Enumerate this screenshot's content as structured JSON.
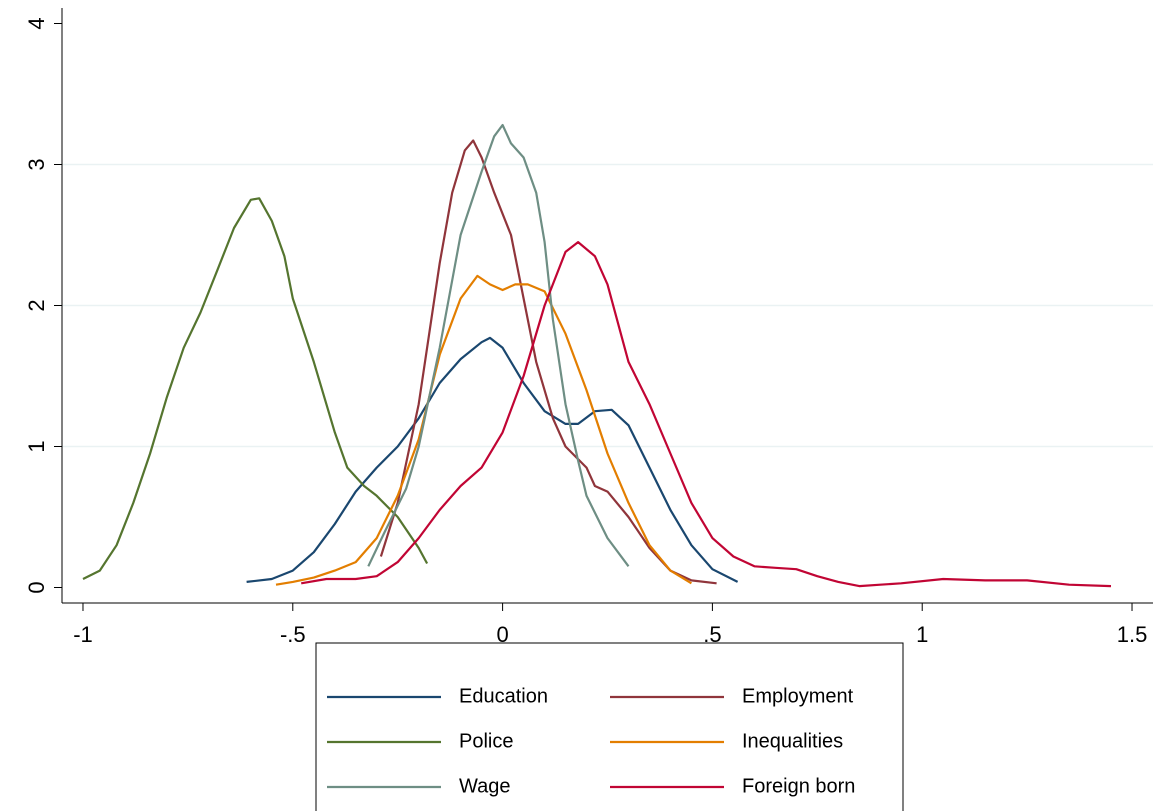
{
  "chart_data": {
    "type": "line",
    "xlim": [
      -1.05,
      1.55
    ],
    "ylim": [
      -0.11,
      4.11
    ],
    "xticks": [
      -1,
      {
        "value": -0.5,
        "label": "-.5"
      },
      0,
      {
        "value": 0.5,
        "label": ".5"
      },
      1,
      1.5
    ],
    "yticks": [
      0,
      1,
      2,
      3,
      4
    ],
    "grid": true,
    "legend": "bottom",
    "series": [
      {
        "name": "Education",
        "color": "#1a476f",
        "x": [
          -0.61,
          -0.55,
          -0.5,
          -0.45,
          -0.4,
          -0.35,
          -0.3,
          -0.25,
          -0.2,
          -0.15,
          -0.1,
          -0.05,
          -0.03,
          0,
          0.05,
          0.1,
          0.15,
          0.18,
          0.22,
          0.26,
          0.3,
          0.35,
          0.4,
          0.45,
          0.5,
          0.56
        ],
        "values": [
          0.04,
          0.06,
          0.12,
          0.25,
          0.45,
          0.68,
          0.85,
          1.0,
          1.2,
          1.45,
          1.62,
          1.74,
          1.77,
          1.7,
          1.45,
          1.25,
          1.16,
          1.16,
          1.25,
          1.26,
          1.15,
          0.85,
          0.55,
          0.3,
          0.13,
          0.04
        ]
      },
      {
        "name": "Employment",
        "color": "#90353b",
        "x": [
          -0.29,
          -0.25,
          -0.2,
          -0.15,
          -0.12,
          -0.09,
          -0.07,
          -0.05,
          -0.02,
          0.02,
          0.05,
          0.08,
          0.12,
          0.15,
          0.2,
          0.22,
          0.25,
          0.3,
          0.35,
          0.4,
          0.45,
          0.51
        ],
        "values": [
          0.22,
          0.6,
          1.3,
          2.3,
          2.8,
          3.1,
          3.17,
          3.05,
          2.8,
          2.5,
          2.05,
          1.6,
          1.2,
          1.0,
          0.85,
          0.72,
          0.68,
          0.5,
          0.28,
          0.12,
          0.05,
          0.03
        ]
      },
      {
        "name": "Police",
        "color": "#55752f",
        "x": [
          -1,
          -0.96,
          -0.92,
          -0.88,
          -0.84,
          -0.8,
          -0.76,
          -0.72,
          -0.68,
          -0.64,
          -0.6,
          -0.58,
          -0.55,
          -0.52,
          -0.5,
          -0.45,
          -0.4,
          -0.37,
          -0.33,
          -0.3,
          -0.25,
          -0.2,
          -0.18
        ],
        "values": [
          0.06,
          0.12,
          0.3,
          0.6,
          0.95,
          1.35,
          1.7,
          1.95,
          2.25,
          2.55,
          2.75,
          2.76,
          2.6,
          2.35,
          2.05,
          1.6,
          1.1,
          0.85,
          0.72,
          0.65,
          0.5,
          0.28,
          0.17
        ]
      },
      {
        "name": "Inequalities",
        "color": "#e37e00",
        "x": [
          -0.54,
          -0.5,
          -0.45,
          -0.4,
          -0.35,
          -0.3,
          -0.25,
          -0.2,
          -0.15,
          -0.1,
          -0.06,
          -0.03,
          0,
          0.03,
          0.06,
          0.1,
          0.15,
          0.2,
          0.25,
          0.3,
          0.35,
          0.4,
          0.45
        ],
        "values": [
          0.02,
          0.04,
          0.07,
          0.12,
          0.18,
          0.35,
          0.65,
          1.05,
          1.65,
          2.05,
          2.21,
          2.15,
          2.11,
          2.15,
          2.15,
          2.1,
          1.8,
          1.4,
          0.95,
          0.6,
          0.3,
          0.12,
          0.03
        ]
      },
      {
        "name": "Wage",
        "color": "#6e8e84",
        "x": [
          -0.32,
          -0.28,
          -0.23,
          -0.2,
          -0.15,
          -0.1,
          -0.05,
          -0.02,
          0,
          0.02,
          0.05,
          0.08,
          0.1,
          0.12,
          0.15,
          0.18,
          0.2,
          0.25,
          0.3
        ],
        "values": [
          0.15,
          0.4,
          0.7,
          1.0,
          1.7,
          2.5,
          2.95,
          3.2,
          3.28,
          3.15,
          3.05,
          2.8,
          2.45,
          1.9,
          1.3,
          0.9,
          0.65,
          0.35,
          0.15
        ]
      },
      {
        "name": "Foreign born",
        "color": "#c10534",
        "x": [
          -0.48,
          -0.42,
          -0.35,
          -0.3,
          -0.25,
          -0.2,
          -0.15,
          -0.1,
          -0.05,
          0,
          0.05,
          0.1,
          0.15,
          0.18,
          0.22,
          0.25,
          0.3,
          0.35,
          0.4,
          0.45,
          0.5,
          0.55,
          0.6,
          0.65,
          0.7,
          0.75,
          0.8,
          0.85,
          0.9,
          0.95,
          1.05,
          1.15,
          1.25,
          1.35,
          1.45
        ],
        "values": [
          0.03,
          0.06,
          0.06,
          0.08,
          0.18,
          0.35,
          0.55,
          0.72,
          0.85,
          1.1,
          1.5,
          2.0,
          2.38,
          2.45,
          2.35,
          2.15,
          1.6,
          1.3,
          0.95,
          0.6,
          0.35,
          0.22,
          0.15,
          0.14,
          0.13,
          0.08,
          0.04,
          0.01,
          0.02,
          0.03,
          0.06,
          0.05,
          0.05,
          0.02,
          0.01
        ]
      }
    ]
  }
}
